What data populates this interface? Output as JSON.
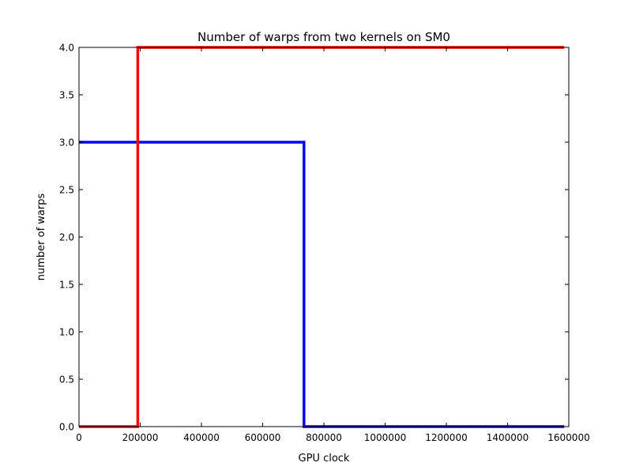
{
  "chart_data": {
    "type": "line",
    "title": "Number of warps from two kernels on SM0",
    "xlabel": "GPU clock",
    "ylabel": "number of warps",
    "xlim": [
      0,
      1600000
    ],
    "ylim": [
      0,
      4.0
    ],
    "x_ticks": [
      0,
      200000,
      400000,
      600000,
      800000,
      1000000,
      1200000,
      1400000,
      1600000
    ],
    "x_tick_labels": [
      "0",
      "200000",
      "400000",
      "600000",
      "800000",
      "1000000",
      "1200000",
      "1400000",
      "1600000"
    ],
    "y_ticks": [
      0,
      0.5,
      1.0,
      1.5,
      2.0,
      2.5,
      3.0,
      3.5,
      4.0
    ],
    "y_tick_labels": [
      "0.0",
      "0.5",
      "1.0",
      "1.5",
      "2.0",
      "2.5",
      "3.0",
      "3.5",
      "4.0"
    ],
    "grid": false,
    "series": [
      {
        "color": "#0000ff",
        "step": true,
        "x": [
          0,
          735000,
          735000,
          1585000
        ],
        "y": [
          3,
          3,
          0,
          0
        ]
      },
      {
        "color": "#ff0000",
        "step": true,
        "x": [
          0,
          192000,
          192000,
          1585000
        ],
        "y": [
          0,
          0,
          4,
          4
        ]
      }
    ]
  }
}
